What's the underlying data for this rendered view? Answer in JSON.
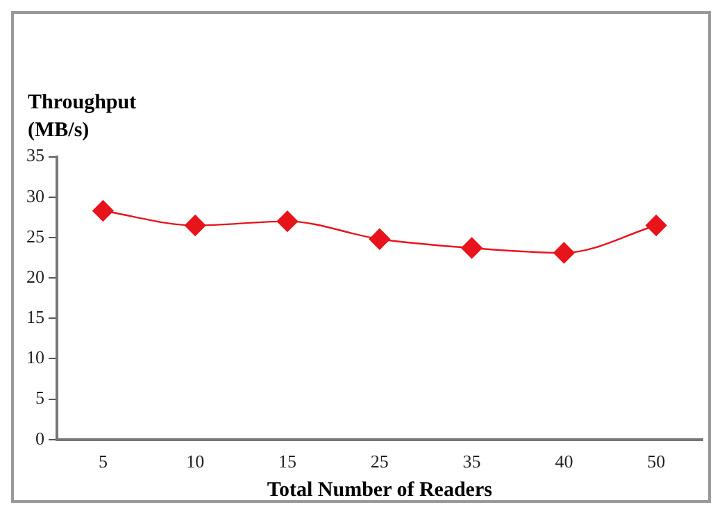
{
  "chart_data": {
    "type": "line",
    "xlabel": "Total Number of Readers",
    "ylabel": "Throughput (MB/s)",
    "categories": [
      "5",
      "10",
      "15",
      "25",
      "35",
      "40",
      "50"
    ],
    "series": [
      {
        "color": "#e8141c",
        "values": [
          28.3,
          26.5,
          27.0,
          24.8,
          23.7,
          23.1,
          26.5
        ]
      }
    ],
    "ylim": [
      0,
      35
    ],
    "yticks": [
      0,
      5,
      10,
      15,
      20,
      25,
      30,
      35
    ],
    "grid": false,
    "legend": false,
    "marker": "diamond",
    "line_style": "solid"
  }
}
